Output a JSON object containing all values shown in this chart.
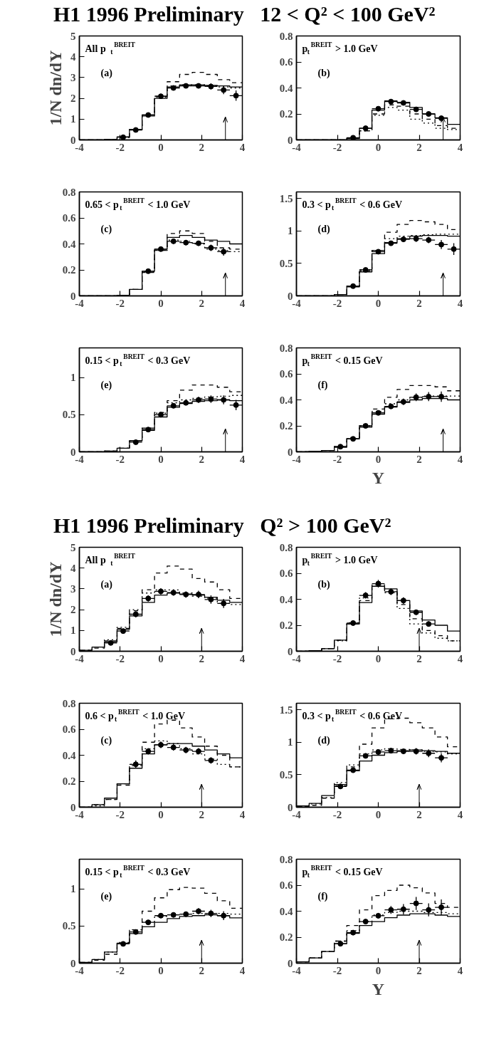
{
  "chart_data": [
    {
      "type": "step",
      "title": "H1 1996 Preliminary   12 < Q² < 100 GeV²",
      "ylabel": "1/N dn/dY",
      "annotations": [
        "All p$_{t}$$^{BREIT}$",
        "(a)"
      ],
      "xlim": [
        -4,
        4
      ],
      "xticks": [
        -4,
        -2,
        0,
        2,
        4
      ],
      "ylim": [
        0,
        5
      ],
      "yticks": [
        0,
        1,
        2,
        3,
        4,
        5
      ],
      "x": [
        -4,
        -3.38,
        -2.77,
        -2.15,
        -1.54,
        -0.92,
        -0.31,
        0.31,
        0.92,
        1.54,
        2.15,
        2.77,
        3.38,
        4
      ],
      "ref_lines": [
        {
          "axis": "x",
          "value": 3.17
        }
      ],
      "series": [
        {
          "color": "#000000",
          "line_style": "solid",
          "values": [
            0,
            0,
            0.02,
            0.15,
            0.5,
            1.15,
            2.0,
            2.55,
            2.65,
            2.65,
            2.62,
            2.6,
            2.55,
            2.55
          ]
        },
        {
          "color": "#000000",
          "line_style": "dashed",
          "values": [
            0,
            0,
            0.03,
            0.12,
            0.5,
            1.2,
            2.1,
            2.8,
            3.15,
            3.25,
            3.15,
            2.9,
            2.75,
            2.75
          ]
        },
        {
          "color": "#000000",
          "line_style": "dotted",
          "values": [
            0,
            0,
            0.02,
            0.14,
            0.5,
            1.2,
            2.05,
            2.6,
            2.65,
            2.65,
            2.6,
            2.55,
            2.5,
            2.5
          ]
        },
        {
          "type": "scatter",
          "color": "#000000",
          "marker": "circle",
          "x": [
            -1.85,
            -1.23,
            -0.62,
            0,
            0.62,
            1.23,
            1.85,
            2.46,
            3.08,
            3.69
          ],
          "values": [
            0.13,
            0.48,
            1.2,
            2.1,
            2.5,
            2.6,
            2.6,
            2.57,
            2.4,
            2.13
          ],
          "errors": [
            0.05,
            0.05,
            0.07,
            0.08,
            0.1,
            0.1,
            0.12,
            0.15,
            0.2,
            0.25
          ],
          "xerrors": [
            0.31,
            0.31,
            0.31,
            0.31,
            0.31,
            0.31,
            0.31,
            0.31,
            0.31,
            0.31
          ]
        }
      ]
    },
    {
      "type": "step",
      "annotations": [
        "p$_{t}$$^{BREIT}$ > 1.0 GeV",
        "(b)"
      ],
      "xlim": [
        -4,
        4
      ],
      "xticks": [
        -4,
        -2,
        0,
        2,
        4
      ],
      "ylim": [
        0,
        0.8
      ],
      "yticks": [
        0,
        0.2,
        0.4,
        0.6,
        0.8
      ],
      "x": [
        -4,
        -3.38,
        -2.77,
        -2.15,
        -1.54,
        -0.92,
        -0.31,
        0.31,
        0.92,
        1.54,
        2.15,
        2.77,
        3.38,
        4
      ],
      "ref_lines": [
        {
          "axis": "x",
          "value": 3.17
        }
      ],
      "series": [
        {
          "color": "#000000",
          "line_style": "solid",
          "values": [
            0,
            0,
            0,
            0,
            0.015,
            0.09,
            0.23,
            0.3,
            0.29,
            0.25,
            0.2,
            0.17,
            0.12,
            0.12
          ]
        },
        {
          "color": "#000000",
          "line_style": "dashed",
          "values": [
            0,
            0,
            0,
            0,
            0.01,
            0.07,
            0.2,
            0.27,
            0.26,
            0.2,
            0.16,
            0.11,
            0.09,
            0.09
          ]
        },
        {
          "color": "#000000",
          "line_style": "dotted",
          "values": [
            0,
            0,
            0,
            0,
            0.01,
            0.07,
            0.19,
            0.25,
            0.23,
            0.16,
            0.13,
            0.09,
            0.08,
            0.08
          ]
        },
        {
          "type": "scatter",
          "color": "#000000",
          "marker": "circle",
          "x": [
            -1.23,
            -0.62,
            0,
            0.62,
            1.23,
            1.85,
            2.46,
            3.08
          ],
          "values": [
            0.017,
            0.09,
            0.24,
            0.295,
            0.285,
            0.235,
            0.2,
            0.167
          ],
          "errors": [
            0.005,
            0.008,
            0.01,
            0.012,
            0.012,
            0.012,
            0.012,
            0.015
          ],
          "xerrors": [
            0.31,
            0.31,
            0.31,
            0.31,
            0.31,
            0.31,
            0.31,
            0.31
          ]
        }
      ]
    },
    {
      "type": "step",
      "annotations": [
        "0.65 < p$_{t}$$^{BREIT}$ < 1.0 GeV",
        "(c)"
      ],
      "xlim": [
        -4,
        4
      ],
      "xticks": [
        -4,
        -2,
        0,
        2,
        4
      ],
      "ylim": [
        0,
        0.8
      ],
      "yticks": [
        0,
        0.2,
        0.4,
        0.6,
        0.8
      ],
      "x": [
        -4,
        -3.38,
        -2.77,
        -2.15,
        -1.54,
        -0.92,
        -0.31,
        0.31,
        0.92,
        1.54,
        2.15,
        2.77,
        3.38,
        4
      ],
      "ref_lines": [
        {
          "axis": "x",
          "value": 3.17
        }
      ],
      "series": [
        {
          "color": "#000000",
          "line_style": "solid",
          "values": [
            0,
            0,
            0,
            0.005,
            0.05,
            0.19,
            0.36,
            0.45,
            0.465,
            0.45,
            0.43,
            0.42,
            0.4,
            0.4
          ]
        },
        {
          "color": "#000000",
          "line_style": "dashed",
          "values": [
            0,
            0,
            0,
            0.005,
            0.05,
            0.18,
            0.35,
            0.48,
            0.5,
            0.48,
            0.42,
            0.37,
            0.36,
            0.36
          ]
        },
        {
          "color": "#000000",
          "line_style": "dotted",
          "values": [
            0,
            0,
            0,
            0.005,
            0.05,
            0.19,
            0.35,
            0.43,
            0.42,
            0.4,
            0.36,
            0.35,
            0.34,
            0.34
          ]
        },
        {
          "type": "scatter",
          "color": "#000000",
          "marker": "circle",
          "x": [
            -0.62,
            0,
            0.62,
            1.23,
            1.85,
            2.46,
            3.08
          ],
          "values": [
            0.19,
            0.36,
            0.42,
            0.41,
            0.405,
            0.37,
            0.34
          ],
          "errors": [
            0.01,
            0.015,
            0.02,
            0.02,
            0.02,
            0.025,
            0.03
          ],
          "xerrors": [
            0.31,
            0.31,
            0.31,
            0.31,
            0.31,
            0.31,
            0.31
          ]
        }
      ]
    },
    {
      "type": "step",
      "annotations": [
        "0.3 < p$_{t}$$^{BREIT}$ < 0.6 GeV",
        "(d)"
      ],
      "xlim": [
        -4,
        4
      ],
      "xticks": [
        -4,
        -2,
        0,
        2,
        4
      ],
      "ylim": [
        0,
        1.6
      ],
      "yticks": [
        0,
        0.5,
        1,
        1.5
      ],
      "x": [
        -4,
        -3.38,
        -2.77,
        -2.15,
        -1.54,
        -0.92,
        -0.31,
        0.31,
        0.92,
        1.54,
        2.15,
        2.77,
        3.38,
        4
      ],
      "ref_lines": [
        {
          "axis": "x",
          "value": 3.17
        }
      ],
      "series": [
        {
          "color": "#000000",
          "line_style": "solid",
          "values": [
            0,
            0,
            0,
            0.02,
            0.15,
            0.37,
            0.65,
            0.82,
            0.88,
            0.92,
            0.93,
            0.93,
            0.92,
            0.92
          ]
        },
        {
          "color": "#000000",
          "line_style": "dashed",
          "values": [
            0,
            0,
            0,
            0.02,
            0.14,
            0.38,
            0.7,
            0.98,
            1.1,
            1.16,
            1.14,
            1.1,
            1.02,
            1.02
          ]
        },
        {
          "color": "#000000",
          "line_style": "dotted",
          "values": [
            0,
            0,
            0,
            0.02,
            0.15,
            0.4,
            0.7,
            0.88,
            0.92,
            0.93,
            0.94,
            0.95,
            0.95,
            0.95
          ]
        },
        {
          "type": "scatter",
          "color": "#000000",
          "marker": "circle",
          "x": [
            -1.23,
            -0.62,
            0,
            0.62,
            1.23,
            1.85,
            2.46,
            3.08,
            3.69
          ],
          "values": [
            0.15,
            0.4,
            0.68,
            0.81,
            0.87,
            0.88,
            0.86,
            0.79,
            0.72
          ],
          "errors": [
            0.02,
            0.03,
            0.03,
            0.04,
            0.04,
            0.05,
            0.05,
            0.07,
            0.09
          ],
          "xerrors": [
            0.31,
            0.31,
            0.31,
            0.31,
            0.31,
            0.31,
            0.31,
            0.31,
            0.31
          ]
        }
      ]
    },
    {
      "type": "step",
      "annotations": [
        "0.15 < p$_{t}$$^{BREIT}$ < 0.3 GeV",
        "(e)"
      ],
      "xlim": [
        -4,
        4
      ],
      "xticks": [
        -4,
        -2,
        0,
        2,
        4
      ],
      "ylim": [
        0,
        1.4
      ],
      "yticks": [
        0,
        0.5,
        1
      ],
      "x": [
        -4,
        -3.38,
        -2.77,
        -2.15,
        -1.54,
        -0.92,
        -0.31,
        0.31,
        0.92,
        1.54,
        2.15,
        2.77,
        3.38,
        4
      ],
      "ref_lines": [
        {
          "axis": "x",
          "value": 3.17
        }
      ],
      "series": [
        {
          "color": "#000000",
          "line_style": "solid",
          "values": [
            0,
            0,
            0.01,
            0.05,
            0.15,
            0.29,
            0.47,
            0.6,
            0.65,
            0.68,
            0.69,
            0.7,
            0.69,
            0.69
          ]
        },
        {
          "color": "#000000",
          "line_style": "dashed",
          "values": [
            0,
            0,
            0.01,
            0.05,
            0.15,
            0.32,
            0.53,
            0.69,
            0.83,
            0.9,
            0.9,
            0.87,
            0.81,
            0.81
          ]
        },
        {
          "color": "#000000",
          "line_style": "dotted",
          "values": [
            0,
            0,
            0.01,
            0.05,
            0.15,
            0.32,
            0.52,
            0.66,
            0.7,
            0.72,
            0.74,
            0.75,
            0.76,
            0.76
          ]
        },
        {
          "type": "scatter",
          "color": "#000000",
          "marker": "circle",
          "x": [
            -1.23,
            -0.62,
            0,
            0.62,
            1.23,
            1.85,
            2.46,
            3.08,
            3.69
          ],
          "values": [
            0.13,
            0.3,
            0.5,
            0.62,
            0.66,
            0.7,
            0.71,
            0.7,
            0.63
          ],
          "errors": [
            0.01,
            0.02,
            0.02,
            0.03,
            0.03,
            0.04,
            0.05,
            0.06,
            0.07
          ],
          "xerrors": [
            0.31,
            0.31,
            0.31,
            0.31,
            0.31,
            0.31,
            0.31,
            0.31,
            0.31
          ]
        }
      ]
    },
    {
      "type": "step",
      "xlabel": "Y",
      "annotations": [
        "p$_{t}$$^{BREIT}$ < 0.15 GeV",
        "(f)"
      ],
      "xlim": [
        -4,
        4
      ],
      "xticks": [
        -4,
        -2,
        0,
        2,
        4
      ],
      "ylim": [
        0,
        0.8
      ],
      "yticks": [
        0,
        0.2,
        0.4,
        0.6,
        0.8
      ],
      "x": [
        -4,
        -3.38,
        -2.77,
        -2.15,
        -1.54,
        -0.92,
        -0.31,
        0.31,
        0.92,
        1.54,
        2.15,
        2.77,
        3.38,
        4
      ],
      "ref_lines": [
        {
          "axis": "x",
          "value": 3.17
        }
      ],
      "series": [
        {
          "color": "#000000",
          "line_style": "solid",
          "values": [
            0,
            0.005,
            0.01,
            0.035,
            0.1,
            0.19,
            0.29,
            0.345,
            0.38,
            0.4,
            0.41,
            0.41,
            0.4,
            0.4
          ]
        },
        {
          "color": "#000000",
          "line_style": "dashed",
          "values": [
            0,
            0.005,
            0.01,
            0.04,
            0.11,
            0.21,
            0.33,
            0.42,
            0.48,
            0.51,
            0.51,
            0.5,
            0.47,
            0.47
          ]
        },
        {
          "color": "#000000",
          "line_style": "dotted",
          "values": [
            0,
            0.005,
            0.01,
            0.04,
            0.1,
            0.2,
            0.31,
            0.37,
            0.4,
            0.42,
            0.43,
            0.43,
            0.43,
            0.43
          ]
        },
        {
          "type": "scatter",
          "color": "#000000",
          "marker": "circle",
          "x": [
            -1.85,
            -1.23,
            -0.62,
            0,
            0.62,
            1.23,
            1.85,
            2.46,
            3.08
          ],
          "values": [
            0.04,
            0.1,
            0.2,
            0.3,
            0.35,
            0.385,
            0.42,
            0.425,
            0.425
          ],
          "errors": [
            0.005,
            0.01,
            0.01,
            0.015,
            0.02,
            0.025,
            0.03,
            0.035,
            0.04
          ],
          "xerrors": [
            0.31,
            0.31,
            0.31,
            0.31,
            0.31,
            0.31,
            0.31,
            0.31,
            0.31
          ]
        }
      ]
    },
    {
      "type": "step",
      "title": "H1 1996 Preliminary   Q² > 100 GeV²",
      "ylabel": "1/N dn/dY",
      "annotations": [
        "All p$_{t}$$^{BREIT}$",
        "(a)"
      ],
      "xlim": [
        -4,
        4
      ],
      "xticks": [
        -4,
        -2,
        0,
        2,
        4
      ],
      "ylim": [
        0,
        5
      ],
      "yticks": [
        0,
        1,
        2,
        3,
        4,
        5
      ],
      "x": [
        -4,
        -3.38,
        -2.77,
        -2.15,
        -1.54,
        -0.92,
        -0.31,
        0.31,
        0.92,
        1.54,
        2.15,
        2.77,
        3.38,
        4
      ],
      "ref_lines": [
        {
          "axis": "x",
          "value": 2.0
        }
      ],
      "series": [
        {
          "color": "#000000",
          "line_style": "solid",
          "values": [
            0.05,
            0.2,
            0.45,
            1.05,
            1.7,
            2.35,
            2.7,
            2.8,
            2.75,
            2.7,
            2.6,
            2.45,
            2.35,
            2.35
          ]
        },
        {
          "color": "#000000",
          "line_style": "dashed",
          "values": [
            0.05,
            0.15,
            0.5,
            1.1,
            1.95,
            2.96,
            3.76,
            4.1,
            3.95,
            3.5,
            3.33,
            2.96,
            2.54,
            2.54
          ]
        },
        {
          "color": "#000000",
          "line_style": "dotted",
          "values": [
            0.05,
            0.2,
            0.55,
            1.15,
            2.0,
            2.8,
            2.95,
            2.95,
            2.8,
            2.65,
            2.55,
            2.3,
            2.25,
            2.25
          ]
        },
        {
          "type": "scatter",
          "color": "#000000",
          "marker": "circle",
          "x": [
            -2.46,
            -1.85,
            -1.23,
            -0.62,
            0,
            0.62,
            1.23,
            1.85,
            2.46,
            3.08
          ],
          "values": [
            0.4,
            0.97,
            1.78,
            2.54,
            2.88,
            2.82,
            2.73,
            2.73,
            2.49,
            2.3
          ],
          "errors": [
            0.08,
            0.12,
            0.15,
            0.15,
            0.15,
            0.15,
            0.15,
            0.18,
            0.2,
            0.22
          ],
          "xerrors": [
            0.31,
            0.31,
            0.31,
            0.31,
            0.31,
            0.31,
            0.31,
            0.31,
            0.31,
            0.31
          ]
        }
      ]
    },
    {
      "type": "step",
      "annotations": [
        "p$_{t}$$^{BREIT}$ > 1.0 GeV",
        "(b)"
      ],
      "xlim": [
        -4,
        4
      ],
      "xticks": [
        -4,
        -2,
        0,
        2,
        4
      ],
      "ylim": [
        0,
        0.8
      ],
      "yticks": [
        0,
        0.2,
        0.4,
        0.6,
        0.8
      ],
      "x": [
        -4,
        -3.38,
        -2.77,
        -2.15,
        -1.54,
        -0.92,
        -0.31,
        0.31,
        0.92,
        1.54,
        2.15,
        2.77,
        3.38,
        4
      ],
      "ref_lines": [
        {
          "axis": "x",
          "value": 2.0
        }
      ],
      "series": [
        {
          "color": "#000000",
          "line_style": "solid",
          "values": [
            0,
            0.005,
            0.02,
            0.086,
            0.21,
            0.375,
            0.5,
            0.48,
            0.39,
            0.31,
            0.24,
            0.2,
            0.155,
            0.155
          ]
        },
        {
          "color": "#000000",
          "line_style": "dashed",
          "values": [
            0,
            0.005,
            0.02,
            0.085,
            0.21,
            0.39,
            0.5,
            0.46,
            0.36,
            0.25,
            0.16,
            0.12,
            0.08,
            0.08
          ]
        },
        {
          "color": "#000000",
          "line_style": "dotted",
          "values": [
            0,
            0.005,
            0.02,
            0.08,
            0.22,
            0.41,
            0.51,
            0.45,
            0.33,
            0.21,
            0.14,
            0.1,
            0.08,
            0.08
          ]
        },
        {
          "type": "scatter",
          "color": "#000000",
          "marker": "circle",
          "x": [
            -1.23,
            -0.62,
            0,
            0.62,
            1.23,
            1.85,
            2.46
          ],
          "values": [
            0.217,
            0.43,
            0.52,
            0.458,
            0.39,
            0.3,
            0.21
          ],
          "errors": [
            0.02,
            0.025,
            0.03,
            0.025,
            0.025,
            0.02,
            0.02
          ],
          "xerrors": [
            0.31,
            0.31,
            0.31,
            0.31,
            0.31,
            0.31,
            0.31
          ]
        }
      ]
    },
    {
      "type": "step",
      "annotations": [
        "0.6 < p$_{t}$$^{BREIT}$ < 1.0 GeV",
        "(c)"
      ],
      "xlim": [
        -4,
        4
      ],
      "xticks": [
        -4,
        -2,
        0,
        2,
        4
      ],
      "ylim": [
        0,
        0.8
      ],
      "yticks": [
        0,
        0.2,
        0.4,
        0.6,
        0.8
      ],
      "x": [
        -4,
        -3.38,
        -2.77,
        -2.15,
        -1.54,
        -0.92,
        -0.31,
        0.31,
        0.92,
        1.54,
        2.15,
        2.77,
        3.38,
        4
      ],
      "ref_lines": [
        {
          "axis": "x",
          "value": 2.0
        }
      ],
      "series": [
        {
          "color": "#000000",
          "line_style": "solid",
          "values": [
            0,
            0.02,
            0.07,
            0.18,
            0.3,
            0.41,
            0.48,
            0.49,
            0.49,
            0.47,
            0.44,
            0.41,
            0.38,
            0.38
          ]
        },
        {
          "color": "#000000",
          "line_style": "dashed",
          "values": [
            0,
            0.02,
            0.06,
            0.17,
            0.32,
            0.5,
            0.64,
            0.67,
            0.61,
            0.54,
            0.47,
            0.4,
            0.31,
            0.31
          ]
        },
        {
          "color": "#000000",
          "line_style": "dotted",
          "values": [
            0,
            0.01,
            0.06,
            0.18,
            0.33,
            0.45,
            0.51,
            0.49,
            0.45,
            0.41,
            0.37,
            0.33,
            0.31,
            0.31
          ]
        },
        {
          "type": "scatter",
          "color": "#000000",
          "marker": "circle",
          "x": [
            -1.23,
            -0.62,
            0,
            0.62,
            1.23,
            1.85,
            2.46
          ],
          "values": [
            0.33,
            0.43,
            0.48,
            0.46,
            0.44,
            0.43,
            0.36
          ],
          "errors": [
            0.03,
            0.025,
            0.025,
            0.025,
            0.025,
            0.025,
            0.025
          ],
          "xerrors": [
            0.31,
            0.31,
            0.31,
            0.31,
            0.31,
            0.31,
            0.31
          ]
        }
      ]
    },
    {
      "type": "step",
      "annotations": [
        "0.3 < p$_{t}$$^{BREIT}$ < 0.6 GeV",
        "(d)"
      ],
      "xlim": [
        -4,
        4
      ],
      "xticks": [
        -4,
        -2,
        0,
        2,
        4
      ],
      "ylim": [
        0,
        1.6
      ],
      "yticks": [
        0,
        0.5,
        1,
        1.5
      ],
      "x": [
        -4,
        -3.38,
        -2.77,
        -2.15,
        -1.54,
        -0.92,
        -0.31,
        0.31,
        0.92,
        1.54,
        2.15,
        2.77,
        3.38,
        4
      ],
      "ref_lines": [
        {
          "axis": "x",
          "value": 2.0
        }
      ],
      "series": [
        {
          "color": "#000000",
          "line_style": "solid",
          "values": [
            0.02,
            0.06,
            0.18,
            0.35,
            0.56,
            0.71,
            0.8,
            0.84,
            0.87,
            0.88,
            0.87,
            0.86,
            0.83,
            0.83
          ]
        },
        {
          "color": "#000000",
          "line_style": "dashed",
          "values": [
            0.01,
            0.03,
            0.14,
            0.33,
            0.62,
            0.97,
            1.22,
            1.36,
            1.37,
            1.3,
            1.22,
            1.08,
            0.93,
            0.93
          ]
        },
        {
          "color": "#000000",
          "line_style": "dotted",
          "values": [
            0.01,
            0.05,
            0.15,
            0.38,
            0.65,
            0.82,
            0.88,
            0.9,
            0.89,
            0.88,
            0.86,
            0.85,
            0.82,
            0.82
          ]
        },
        {
          "type": "scatter",
          "color": "#000000",
          "marker": "circle",
          "x": [
            -1.85,
            -1.23,
            -0.62,
            0,
            0.62,
            1.23,
            1.85,
            2.46,
            3.08
          ],
          "values": [
            0.32,
            0.57,
            0.79,
            0.85,
            0.87,
            0.86,
            0.86,
            0.83,
            0.76
          ],
          "errors": [
            0.04,
            0.04,
            0.04,
            0.04,
            0.04,
            0.04,
            0.05,
            0.06,
            0.07
          ],
          "xerrors": [
            0.31,
            0.31,
            0.31,
            0.31,
            0.31,
            0.31,
            0.31,
            0.31,
            0.31
          ]
        }
      ]
    },
    {
      "type": "step",
      "annotations": [
        "0.15 < p$_{t}$$^{BREIT}$ < 0.3 GeV",
        "(e)"
      ],
      "xlim": [
        -4,
        4
      ],
      "xticks": [
        -4,
        -2,
        0,
        2,
        4
      ],
      "ylim": [
        0,
        1.4
      ],
      "yticks": [
        0,
        0.5,
        1
      ],
      "x": [
        -4,
        -3.38,
        -2.77,
        -2.15,
        -1.54,
        -0.92,
        -0.31,
        0.31,
        0.92,
        1.54,
        2.15,
        2.77,
        3.38,
        4
      ],
      "ref_lines": [
        {
          "axis": "x",
          "value": 2.0
        }
      ],
      "series": [
        {
          "color": "#000000",
          "line_style": "solid",
          "values": [
            0.01,
            0.05,
            0.15,
            0.27,
            0.4,
            0.49,
            0.55,
            0.6,
            0.63,
            0.64,
            0.65,
            0.64,
            0.61,
            0.61
          ]
        },
        {
          "color": "#000000",
          "line_style": "dashed",
          "values": [
            0.01,
            0.04,
            0.12,
            0.27,
            0.45,
            0.7,
            0.88,
            0.99,
            1.02,
            1.01,
            0.94,
            0.84,
            0.74,
            0.74
          ]
        },
        {
          "color": "#000000",
          "line_style": "dotted",
          "values": [
            0.01,
            0.05,
            0.15,
            0.28,
            0.45,
            0.56,
            0.63,
            0.65,
            0.66,
            0.67,
            0.67,
            0.67,
            0.66,
            0.66
          ]
        },
        {
          "type": "scatter",
          "color": "#000000",
          "marker": "circle",
          "x": [
            -1.85,
            -1.23,
            -0.62,
            0,
            0.62,
            1.23,
            1.85,
            2.46,
            3.08
          ],
          "values": [
            0.26,
            0.42,
            0.55,
            0.64,
            0.65,
            0.66,
            0.7,
            0.67,
            0.64
          ],
          "errors": [
            0.03,
            0.03,
            0.03,
            0.03,
            0.03,
            0.03,
            0.04,
            0.05,
            0.06
          ],
          "xerrors": [
            0.31,
            0.31,
            0.31,
            0.31,
            0.31,
            0.31,
            0.31,
            0.31,
            0.31
          ]
        }
      ]
    },
    {
      "type": "step",
      "xlabel": "Y",
      "annotations": [
        "p$_{t}$$^{BREIT}$ < 0.15 GeV",
        "(f)"
      ],
      "xlim": [
        -4,
        4
      ],
      "xticks": [
        -4,
        -2,
        0,
        2,
        4
      ],
      "ylim": [
        0,
        0.8
      ],
      "yticks": [
        0,
        0.2,
        0.4,
        0.6,
        0.8
      ],
      "x": [
        -4,
        -3.38,
        -2.77,
        -2.15,
        -1.54,
        -0.92,
        -0.31,
        0.31,
        0.92,
        1.54,
        2.15,
        2.77,
        3.38,
        4
      ],
      "ref_lines": [
        {
          "axis": "x",
          "value": 2.0
        }
      ],
      "series": [
        {
          "color": "#000000",
          "line_style": "solid",
          "values": [
            0.01,
            0.04,
            0.09,
            0.15,
            0.23,
            0.29,
            0.32,
            0.35,
            0.37,
            0.38,
            0.38,
            0.37,
            0.36,
            0.36
          ]
        },
        {
          "color": "#000000",
          "line_style": "dashed",
          "values": [
            0.01,
            0.04,
            0.09,
            0.17,
            0.29,
            0.41,
            0.52,
            0.56,
            0.6,
            0.58,
            0.54,
            0.46,
            0.43,
            0.43
          ]
        },
        {
          "color": "#000000",
          "line_style": "dotted",
          "values": [
            0.01,
            0.04,
            0.09,
            0.17,
            0.25,
            0.32,
            0.37,
            0.39,
            0.4,
            0.4,
            0.39,
            0.39,
            0.38,
            0.38
          ]
        },
        {
          "type": "scatter",
          "color": "#000000",
          "marker": "circle",
          "x": [
            -1.85,
            -1.23,
            -0.62,
            0,
            0.62,
            1.23,
            1.85,
            2.46,
            3.08
          ],
          "values": [
            0.15,
            0.235,
            0.32,
            0.365,
            0.41,
            0.415,
            0.46,
            0.41,
            0.43
          ],
          "errors": [
            0.02,
            0.02,
            0.015,
            0.02,
            0.03,
            0.04,
            0.05,
            0.05,
            0.06
          ],
          "xerrors": [
            0.31,
            0.31,
            0.31,
            0.31,
            0.31,
            0.31,
            0.31,
            0.31,
            0.31
          ]
        }
      ]
    }
  ]
}
